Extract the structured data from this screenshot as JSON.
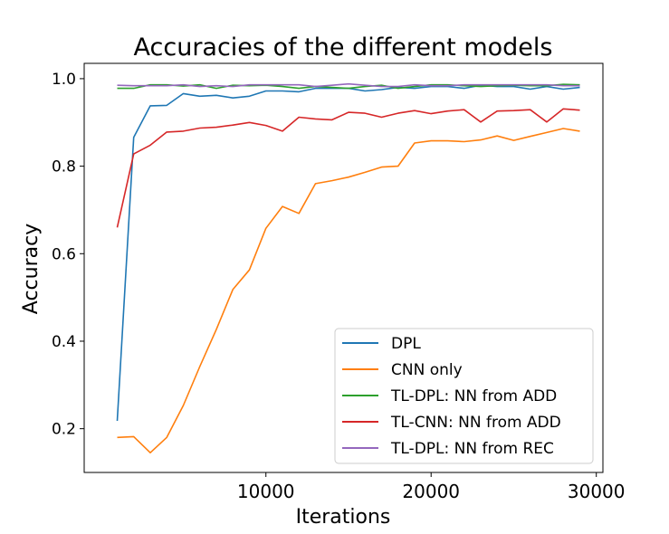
{
  "chart_data": {
    "type": "line",
    "title": "Accuracies of the different models",
    "xlabel": "Iterations",
    "ylabel": "Accuracy",
    "xlim": [
      -1000,
      30400
    ],
    "ylim": [
      0.1,
      1.035
    ],
    "xticks": [
      10000,
      20000,
      30000
    ],
    "xtick_labels": [
      "10000",
      "20000",
      "30000"
    ],
    "yticks": [
      0.2,
      0.4,
      0.6,
      0.8,
      1.0
    ],
    "ytick_labels": [
      "0.2",
      "0.4",
      "0.6",
      "0.8",
      "1.0"
    ],
    "grid": false,
    "legend_position": "lower-right",
    "x": [
      1000,
      2000,
      3000,
      4000,
      5000,
      6000,
      7000,
      8000,
      9000,
      10000,
      11000,
      12000,
      13000,
      14000,
      15000,
      16000,
      17000,
      18000,
      19000,
      20000,
      21000,
      22000,
      23000,
      24000,
      25000,
      26000,
      27000,
      28000,
      29000
    ],
    "series": [
      {
        "name": "DPL",
        "color": "#1f77b4",
        "values": [
          0.218,
          0.866,
          0.938,
          0.939,
          0.966,
          0.96,
          0.962,
          0.956,
          0.96,
          0.972,
          0.972,
          0.97,
          0.978,
          0.978,
          0.978,
          0.972,
          0.975,
          0.98,
          0.978,
          0.982,
          0.982,
          0.978,
          0.985,
          0.982,
          0.982,
          0.976,
          0.982,
          0.976,
          0.98
        ]
      },
      {
        "name": "CNN only",
        "color": "#ff7f0e",
        "values": [
          0.18,
          0.182,
          0.145,
          0.18,
          0.253,
          0.342,
          0.427,
          0.518,
          0.563,
          0.658,
          0.708,
          0.692,
          0.76,
          0.767,
          0.775,
          0.786,
          0.798,
          0.8,
          0.853,
          0.858,
          0.858,
          0.856,
          0.86,
          0.869,
          0.859,
          0.868,
          0.877,
          0.886,
          0.88
        ]
      },
      {
        "name": "TL-DPL: NN from ADD",
        "color": "#2ca02c",
        "values": [
          0.978,
          0.978,
          0.986,
          0.986,
          0.983,
          0.986,
          0.978,
          0.985,
          0.984,
          0.985,
          0.982,
          0.978,
          0.982,
          0.98,
          0.978,
          0.982,
          0.985,
          0.978,
          0.982,
          0.986,
          0.986,
          0.984,
          0.982,
          0.984,
          0.985,
          0.984,
          0.984,
          0.987,
          0.986
        ]
      },
      {
        "name": "TL-CNN: NN from ADD",
        "color": "#d62728",
        "values": [
          0.66,
          0.828,
          0.848,
          0.878,
          0.88,
          0.887,
          0.889,
          0.894,
          0.9,
          0.893,
          0.88,
          0.912,
          0.908,
          0.906,
          0.923,
          0.921,
          0.912,
          0.921,
          0.927,
          0.92,
          0.926,
          0.929,
          0.901,
          0.926,
          0.927,
          0.929,
          0.901,
          0.931,
          0.928
        ]
      },
      {
        "name": "TL-DPL: NN from REC",
        "color": "#9467bd",
        "values": [
          0.985,
          0.984,
          0.984,
          0.984,
          0.986,
          0.982,
          0.984,
          0.982,
          0.986,
          0.986,
          0.986,
          0.986,
          0.982,
          0.985,
          0.988,
          0.985,
          0.982,
          0.982,
          0.986,
          0.984,
          0.984,
          0.986,
          0.986,
          0.986,
          0.986,
          0.986,
          0.986,
          0.984,
          0.984
        ]
      }
    ]
  }
}
